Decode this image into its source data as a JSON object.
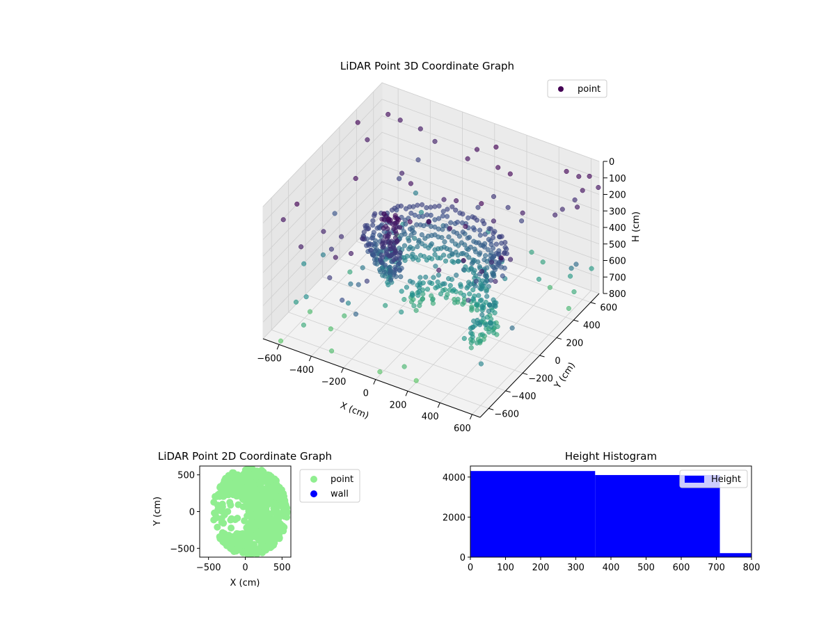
{
  "chart_data": [
    {
      "type": "scatter",
      "projection": "3d",
      "title": "LiDAR Point 3D Coordinate Graph",
      "xlabel": "X (cm)",
      "ylabel": "Y (cm)",
      "zlabel": "H (cm)",
      "xlim": [
        -700,
        650
      ],
      "ylim": [
        -700,
        700
      ],
      "zlim": [
        0,
        800
      ],
      "z_inverted": true,
      "xticks": [
        "−600",
        "−400",
        "−200",
        "0",
        "200",
        "400",
        "600"
      ],
      "yticks": [
        "−600",
        "−400",
        "−200",
        "0",
        "200",
        "400",
        "600"
      ],
      "zticks": [
        "0",
        "100",
        "200",
        "300",
        "400",
        "500",
        "600",
        "700",
        "800"
      ],
      "colormap": "viridis",
      "legend": {
        "placement": "upper right",
        "entries": [
          "point"
        ]
      },
      "grid": true,
      "series": [
        {
          "name": "point",
          "color_by": "height",
          "points_sample": [
            [
              -250,
              400,
              520
            ],
            [
              -150,
              380,
              500
            ],
            [
              0,
              350,
              480
            ],
            [
              150,
              300,
              460
            ],
            [
              300,
              200,
              440
            ],
            [
              380,
              100,
              420
            ],
            [
              420,
              0,
              400
            ],
            [
              400,
              -100,
              380
            ],
            [
              350,
              -180,
              360
            ],
            [
              -300,
              250,
              560
            ],
            [
              -150,
              230,
              540
            ],
            [
              0,
              200,
              520
            ],
            [
              150,
              150,
              500
            ],
            [
              280,
              60,
              480
            ],
            [
              -350,
              150,
              600
            ],
            [
              -200,
              120,
              580
            ],
            [
              -50,
              100,
              560
            ],
            [
              100,
              60,
              540
            ],
            [
              250,
              0,
              520
            ],
            [
              -200,
              -200,
              150
            ],
            [
              -180,
              -220,
              250
            ],
            [
              -160,
              -240,
              350
            ],
            [
              -150,
              -250,
              450
            ],
            [
              100,
              500,
              300
            ],
            [
              200,
              480,
              320
            ],
            [
              300,
              450,
              350
            ],
            [
              -620,
              620,
              120
            ],
            [
              -560,
              650,
              150
            ],
            [
              -450,
              680,
              180
            ],
            [
              -350,
              660,
              210
            ],
            [
              -600,
              -500,
              650
            ],
            [
              -500,
              -600,
              700
            ],
            [
              -300,
              -650,
              760
            ],
            [
              0,
              -650,
              780
            ],
            [
              200,
              -600,
              790
            ],
            [
              500,
              600,
              60
            ],
            [
              550,
              650,
              100
            ],
            [
              600,
              600,
              140
            ],
            [
              620,
              500,
              180
            ],
            [
              550,
              550,
              650
            ],
            [
              600,
              500,
              700
            ],
            [
              620,
              400,
              740
            ]
          ]
        }
      ]
    },
    {
      "type": "scatter",
      "title": "LiDAR Point 2D Coordinate Graph",
      "xlabel": "X (cm)",
      "ylabel": "Y (cm)",
      "xlim": [
        -620,
        620
      ],
      "ylim": [
        -620,
        620
      ],
      "xticks": [
        -500,
        0,
        500
      ],
      "yticks": [
        -500,
        0,
        500
      ],
      "legend": {
        "placement": "outside right",
        "entries": [
          "point",
          "wall"
        ]
      },
      "series": [
        {
          "name": "point",
          "color": "#90ee90"
        },
        {
          "name": "wall",
          "color": "#0000ff",
          "values": []
        }
      ]
    },
    {
      "type": "bar",
      "title": "Height Histogram",
      "xlabel": "",
      "ylabel": "",
      "xlim": [
        0,
        800
      ],
      "ylim": [
        0,
        4550
      ],
      "xticks": [
        0,
        100,
        200,
        300,
        400,
        500,
        600,
        700,
        800
      ],
      "yticks": [
        0,
        2000,
        4000
      ],
      "legend": {
        "placement": "upper right",
        "entries": [
          "Height"
        ]
      },
      "series": [
        {
          "name": "Height",
          "color": "#0000ff",
          "bins": [
            [
              0,
              355
            ],
            [
              355,
              710
            ],
            [
              710,
              800
            ]
          ],
          "values": [
            4300,
            4100,
            200
          ]
        }
      ]
    }
  ]
}
